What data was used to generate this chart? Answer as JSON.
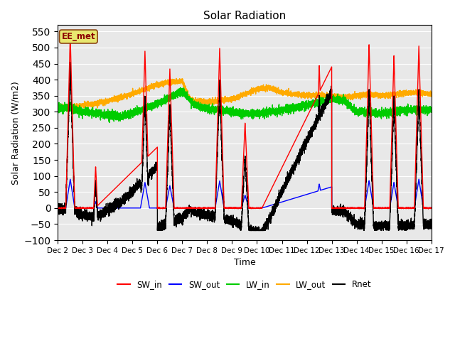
{
  "title": "Solar Radiation",
  "xlabel": "Time",
  "ylabel": "Solar Radiation (W/m2)",
  "ylim": [
    -100,
    570
  ],
  "yticks": [
    -100,
    -50,
    0,
    50,
    100,
    150,
    200,
    250,
    300,
    350,
    400,
    450,
    500,
    550
  ],
  "x_tick_labels": [
    "Dec 2",
    "Dec 3",
    "Dec 4",
    "Dec 5",
    "Dec 6",
    "Dec 7",
    "Dec 8",
    "Dec 9",
    "Dec 10",
    "Dec 11",
    "Dec 12",
    "Dec 13",
    "Dec 14",
    "Dec 15",
    "Dec 16",
    "Dec 17"
  ],
  "colors": {
    "SW_in": "#ff0000",
    "SW_out": "#0000ff",
    "LW_in": "#00cc00",
    "LW_out": "#ffaa00",
    "Rnet": "#000000"
  },
  "bg_color": "#e8e8e8",
  "annotation_text": "EE_met",
  "annotation_bg": "#e8e870",
  "annotation_border": "#8b4513"
}
